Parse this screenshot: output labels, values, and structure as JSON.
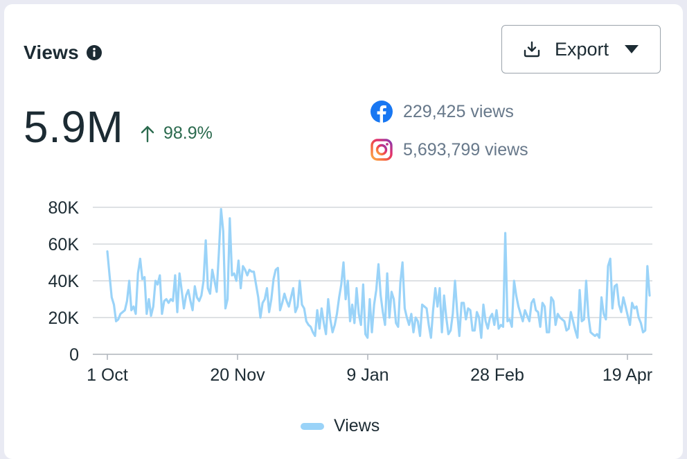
{
  "header": {
    "title": "Views",
    "export_label": "Export"
  },
  "summary": {
    "total": "5.9M",
    "change": "98.9%",
    "platforms": [
      {
        "name": "facebook",
        "icon": "facebook-icon",
        "text": "229,425 views"
      },
      {
        "name": "instagram",
        "icon": "instagram-icon",
        "text": "5,693,799 views"
      }
    ]
  },
  "colors": {
    "line": "#9ad3f8",
    "positive": "#2b6a4e",
    "facebook": "#1877f2",
    "grid": "#d4d7dc"
  },
  "chart_data": {
    "type": "line",
    "series": [
      {
        "name": "Views",
        "values": [
          56000,
          43000,
          31000,
          27000,
          18000,
          19000,
          22000,
          23000,
          24000,
          29000,
          40000,
          24000,
          26000,
          22000,
          44000,
          52000,
          41000,
          42000,
          22000,
          30000,
          21000,
          26000,
          40000,
          38000,
          43000,
          22000,
          29000,
          30000,
          28000,
          30000,
          29000,
          43000,
          23000,
          44000,
          35000,
          25000,
          32000,
          35000,
          29000,
          24000,
          37000,
          31000,
          29000,
          32000,
          40000,
          62000,
          36000,
          33000,
          46000,
          40000,
          34000,
          55000,
          79000,
          67000,
          25000,
          30000,
          74000,
          43000,
          44000,
          40000,
          51000,
          36000,
          48000,
          46000,
          43000,
          46000,
          45000,
          45000,
          38000,
          31000,
          20000,
          28000,
          30000,
          36000,
          23000,
          30000,
          41000,
          46000,
          47000,
          24000,
          28000,
          33000,
          29000,
          26000,
          31000,
          36000,
          23000,
          26000,
          40000,
          27000,
          25000,
          18000,
          16000,
          15000,
          12000,
          10000,
          24000,
          14000,
          25000,
          17000,
          11000,
          30000,
          19000,
          12000,
          16000,
          22000,
          31000,
          38000,
          50000,
          30000,
          40000,
          18000,
          27000,
          17000,
          36000,
          22000,
          16000,
          38000,
          11000,
          9000,
          30000,
          12000,
          27000,
          35000,
          49000,
          32000,
          23000,
          16000,
          44000,
          20000,
          34000,
          30000,
          17000,
          15000,
          39000,
          50000,
          25000,
          20000,
          16000,
          22000,
          12000,
          20000,
          18000,
          10000,
          27000,
          26000,
          25000,
          16000,
          9000,
          24000,
          36000,
          26000,
          36000,
          12000,
          32000,
          20000,
          11000,
          13000,
          22000,
          40000,
          23000,
          10000,
          28000,
          28000,
          19000,
          25000,
          24000,
          13000,
          13000,
          23000,
          20000,
          9000,
          27000,
          18000,
          14000,
          20000,
          22000,
          16000,
          24000,
          14000,
          16000,
          15000,
          66000,
          18000,
          19000,
          15000,
          40000,
          32000,
          26000,
          22000,
          18000,
          24000,
          21000,
          18000,
          28000,
          30000,
          24000,
          23000,
          15000,
          28000,
          26000,
          12000,
          12000,
          31000,
          29000,
          16000,
          22000,
          20000,
          19000,
          18000,
          13000,
          14000,
          23000,
          18000,
          13000,
          9000,
          35000,
          18000,
          19000,
          40000,
          21000,
          12000,
          11000,
          10000,
          11000,
          9000,
          31000,
          22000,
          19000,
          48000,
          52000,
          25000,
          37000,
          38000,
          27000,
          23000,
          31000,
          26000,
          21000,
          16000,
          28000,
          25000,
          26000,
          20000,
          17000,
          12000,
          13000,
          48000,
          32000
        ]
      }
    ],
    "x_ticks": [
      "1 Oct",
      "20 Nov",
      "9 Jan",
      "28 Feb",
      "19 Apr"
    ],
    "y_ticks": [
      "80K",
      "60K",
      "40K",
      "20K",
      "0"
    ],
    "ylim": [
      0,
      80000
    ],
    "grid": true,
    "legend_position": "bottom-center"
  },
  "legend": {
    "label": "Views"
  }
}
